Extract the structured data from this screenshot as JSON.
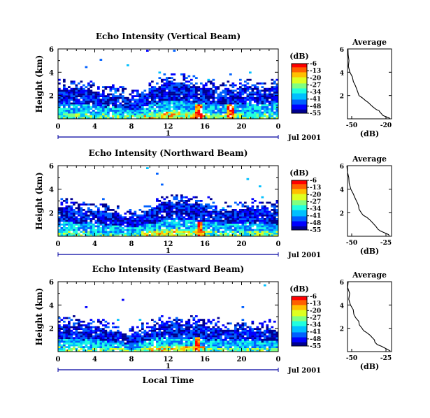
{
  "figure": {
    "xlabel": "Local Time",
    "date_label": "Jul 2001",
    "day_label": "1",
    "colorbar_unit": "(dB)",
    "average_title": "Average",
    "average_xlabel": "(dB)"
  },
  "colors": {
    "jet": [
      "#00008f",
      "#0000ff",
      "#0060ff",
      "#00c0ff",
      "#20ffdf",
      "#80ff80",
      "#dfff20",
      "#ffc000",
      "#ff6000",
      "#ff0000"
    ],
    "axis": "#000000",
    "time_bar": "#0000a0"
  },
  "chart_data": [
    {
      "type": "heatmap",
      "title": "Echo Intensity (Vertical Beam)",
      "ylabel": "Height (km)",
      "xlim": [
        0,
        24
      ],
      "ylim": [
        0,
        6
      ],
      "x_ticks": [
        "0",
        "4",
        "8",
        "12",
        "16",
        "20",
        "0"
      ],
      "y_ticks": [
        "2",
        "4",
        "6"
      ],
      "colorbar": {
        "range": [
          -55,
          -6
        ],
        "ticks": [
          "-6",
          "-13",
          "-20",
          "-27",
          "-34",
          "-41",
          "-48",
          "-55"
        ]
      },
      "layer_top_km": [
        2.7,
        2.6,
        2.6,
        2.5,
        2.5,
        2.3,
        2.2,
        2.0,
        1.8,
        2.1,
        2.6,
        3.0,
        3.2,
        3.2,
        3.1,
        2.9,
        2.8,
        2.7,
        2.5,
        2.6,
        2.8,
        2.8,
        2.7,
        2.7,
        2.7
      ],
      "hot_times_h": [
        15.2,
        18.6
      ],
      "average_profile": {
        "xlim": [
          -50,
          -20
        ],
        "ylim": [
          0,
          6
        ],
        "x_ticks": [
          "-50",
          "-20"
        ],
        "y_ticks": [
          "2",
          "4",
          "6"
        ],
        "x_db": [
          -50,
          -50,
          -49,
          -49,
          -48,
          -47,
          -46,
          -45,
          -44,
          -43,
          -42,
          -40,
          -38,
          -36,
          -34,
          -32,
          -30,
          -29,
          -28,
          -27,
          -26,
          -23,
          -21
        ],
        "y_km": [
          6.0,
          5.5,
          5.0,
          4.5,
          4.0,
          3.6,
          3.2,
          2.9,
          2.6,
          2.3,
          2.0,
          1.8,
          1.6,
          1.4,
          1.2,
          1.0,
          0.8,
          0.7,
          0.6,
          0.4,
          0.3,
          0.15,
          0.05
        ]
      }
    },
    {
      "type": "heatmap",
      "title": "Echo Intensity (Northward Beam)",
      "ylabel": "Height (km)",
      "xlim": [
        0,
        24
      ],
      "ylim": [
        0,
        6
      ],
      "x_ticks": [
        "0",
        "4",
        "8",
        "12",
        "16",
        "20",
        "0"
      ],
      "y_ticks": [
        "2",
        "4",
        "6"
      ],
      "colorbar": {
        "range": [
          -55,
          -6
        ],
        "ticks": [
          "-6",
          "-13",
          "-20",
          "-27",
          "-34",
          "-41",
          "-48",
          "-55"
        ]
      },
      "layer_top_km": [
        2.6,
        2.5,
        2.4,
        2.4,
        2.3,
        2.2,
        2.0,
        1.8,
        1.7,
        1.9,
        2.3,
        2.7,
        2.9,
        3.0,
        3.0,
        2.8,
        2.6,
        2.4,
        2.3,
        2.3,
        2.4,
        2.5,
        2.5,
        2.4,
        2.5
      ],
      "hot_times_h": [
        15.3
      ],
      "average_profile": {
        "xlim": [
          -50,
          -25
        ],
        "ylim": [
          0,
          6
        ],
        "x_ticks": [
          "-50",
          "-25"
        ],
        "y_ticks": [
          "2",
          "4",
          "6"
        ],
        "x_db": [
          -50,
          -50,
          -49,
          -49,
          -48,
          -47,
          -46,
          -45,
          -44,
          -43,
          -42,
          -41,
          -39,
          -37,
          -36,
          -35,
          -34,
          -33,
          -31,
          -29,
          -27,
          -26
        ],
        "y_km": [
          6.0,
          5.5,
          5.0,
          4.5,
          4.0,
          3.6,
          3.2,
          2.9,
          2.6,
          2.3,
          2.0,
          1.8,
          1.6,
          1.4,
          1.2,
          1.0,
          0.8,
          0.6,
          0.45,
          0.3,
          0.15,
          0.05
        ]
      }
    },
    {
      "type": "heatmap",
      "title": "Echo Intensity (Eastward Beam)",
      "ylabel": "Height (km)",
      "xlim": [
        0,
        24
      ],
      "ylim": [
        0,
        6
      ],
      "x_ticks": [
        "0",
        "4",
        "8",
        "12",
        "16",
        "20",
        "0"
      ],
      "y_ticks": [
        "2",
        "4",
        "6"
      ],
      "colorbar": {
        "range": [
          -55,
          -6
        ],
        "ticks": [
          "-6",
          "-13",
          "-20",
          "-27",
          "-34",
          "-41",
          "-48",
          "-55"
        ]
      },
      "layer_top_km": [
        2.4,
        2.4,
        2.3,
        2.3,
        2.2,
        2.0,
        1.8,
        1.6,
        1.5,
        1.7,
        2.1,
        2.5,
        2.6,
        2.6,
        2.5,
        2.5,
        2.3,
        2.2,
        2.0,
        2.0,
        2.1,
        2.1,
        2.0,
        2.0,
        2.0
      ],
      "hot_times_h": [
        15.1
      ],
      "average_profile": {
        "xlim": [
          -50,
          -25
        ],
        "ylim": [
          0,
          6
        ],
        "x_ticks": [
          "-50",
          "-25"
        ],
        "y_ticks": [
          "2",
          "4",
          "6"
        ],
        "x_db": [
          -50,
          -50,
          -49,
          -49,
          -48,
          -47,
          -46,
          -45,
          -44,
          -43,
          -42,
          -41,
          -39,
          -37,
          -36,
          -35,
          -34,
          -33,
          -31,
          -29,
          -27,
          -26
        ],
        "y_km": [
          6.0,
          5.5,
          5.0,
          4.5,
          4.0,
          3.6,
          3.2,
          2.9,
          2.6,
          2.3,
          2.0,
          1.8,
          1.6,
          1.4,
          1.2,
          1.0,
          0.8,
          0.6,
          0.45,
          0.3,
          0.15,
          0.05
        ]
      }
    }
  ]
}
